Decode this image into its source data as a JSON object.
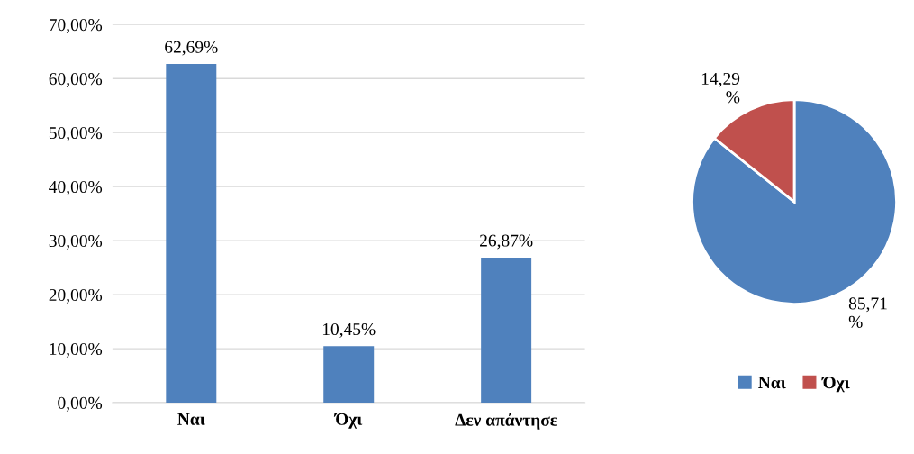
{
  "chart_data": [
    {
      "type": "bar",
      "categories": [
        "Ναι",
        "Όχι",
        "Δεν απάντησε"
      ],
      "values": [
        62.69,
        10.45,
        26.87
      ],
      "color": "#4f81bd",
      "value_labels": [
        "62,69%",
        "10,45%",
        "26,87%"
      ],
      "ylim": [
        0,
        70
      ],
      "yticks": [
        {
          "value": 0,
          "label": "0,00%"
        },
        {
          "value": 10,
          "label": "10,00%"
        },
        {
          "value": 20,
          "label": "20,00%"
        },
        {
          "value": 30,
          "label": "30,00%"
        },
        {
          "value": 40,
          "label": "40,00%"
        },
        {
          "value": 50,
          "label": "50,00%"
        },
        {
          "value": 60,
          "label": "60,00%"
        },
        {
          "value": 70,
          "label": "70,00%"
        }
      ],
      "grid": "y"
    },
    {
      "type": "pie",
      "categories": [
        "Ναι",
        "Όχι"
      ],
      "values": [
        85.71,
        14.29
      ],
      "colors": [
        "#4f81bd",
        "#c0504d"
      ],
      "value_labels": [
        "85,71 %",
        "14,29 %"
      ],
      "legend": "bottom"
    }
  ]
}
